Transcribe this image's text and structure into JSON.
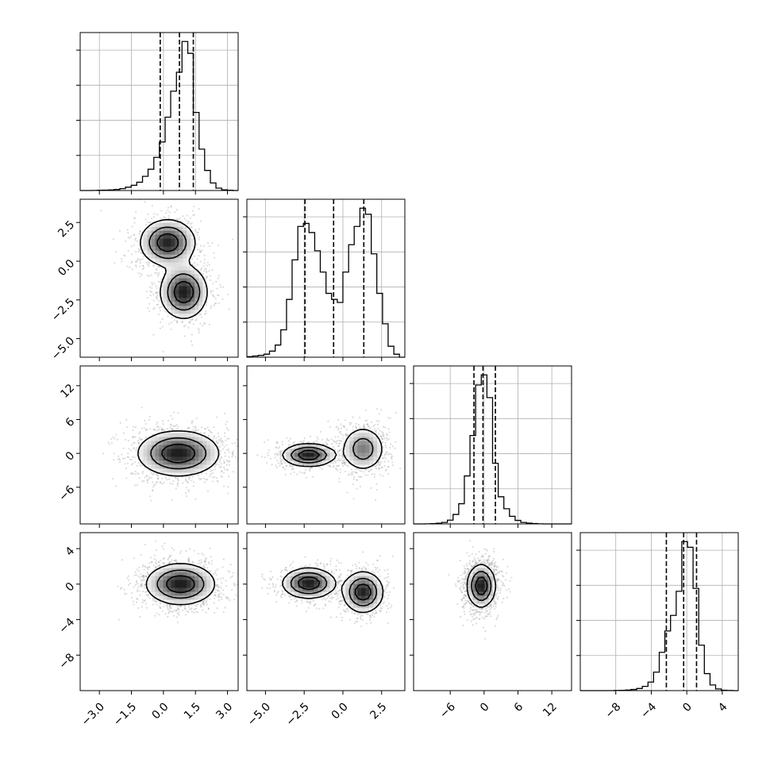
{
  "chart_data": {
    "type": "corner",
    "grid": true,
    "params": [
      {
        "index": 0,
        "range": [
          -3.9,
          3.5
        ],
        "ticks": [
          -3.0,
          -1.5,
          0.0,
          1.5,
          3.0
        ],
        "tick_labels": [
          "−3.0",
          "−1.5",
          "0.0",
          "1.5",
          "3.0"
        ]
      },
      {
        "index": 1,
        "range": [
          -6.2,
          4.0
        ],
        "ticks": [
          -5.0,
          -2.5,
          0.0,
          2.5
        ],
        "tick_labels": [
          "−5.0",
          "−2.5",
          "0.0",
          "2.5"
        ]
      },
      {
        "index": 2,
        "range": [
          -12.5,
          15.5
        ],
        "ticks": [
          -6,
          0,
          6,
          12
        ],
        "tick_labels": [
          "−6",
          "0",
          "6",
          "12"
        ]
      },
      {
        "index": 3,
        "range": [
          -12.0,
          5.8
        ],
        "ticks": [
          -8,
          -4,
          0,
          4
        ],
        "tick_labels": [
          "−8",
          "−4",
          "0",
          "4"
        ]
      }
    ],
    "histograms": [
      {
        "param": 0,
        "quantiles": [
          -0.15,
          0.75,
          1.4
        ],
        "bin_edges": [
          -3.9,
          -3.63,
          -3.37,
          -3.1,
          -2.84,
          -2.57,
          -2.31,
          -2.04,
          -1.78,
          -1.51,
          -1.25,
          -0.98,
          -0.72,
          -0.45,
          -0.19,
          0.08,
          0.34,
          0.61,
          0.87,
          1.14,
          1.4,
          1.67,
          1.93,
          2.2,
          2.46,
          2.73,
          3.0,
          3.26,
          3.5
        ],
        "counts": [
          0,
          0,
          0.5,
          1,
          1.5,
          2.5,
          4.5,
          8,
          14,
          22,
          35,
          60,
          90,
          140,
          205,
          310,
          420,
          500,
          630,
          580,
          330,
          175,
          85,
          32,
          10,
          3,
          1,
          0
        ]
      },
      {
        "param": 1,
        "quantiles": [
          -2.45,
          -0.6,
          1.35
        ],
        "bin_edges": [
          -6.2,
          -5.83,
          -5.47,
          -5.1,
          -4.74,
          -4.37,
          -4.01,
          -3.64,
          -3.28,
          -2.91,
          -2.55,
          -2.19,
          -1.82,
          -1.46,
          -1.09,
          -0.73,
          -0.36,
          0.0,
          0.37,
          0.73,
          1.1,
          1.46,
          1.83,
          2.19,
          2.56,
          2.92,
          3.29,
          3.65,
          4.0
        ],
        "counts": [
          1,
          2,
          3,
          5,
          10,
          20,
          45,
          95,
          160,
          215,
          220,
          205,
          175,
          140,
          105,
          95,
          90,
          140,
          185,
          215,
          245,
          235,
          170,
          105,
          55,
          18,
          5,
          0
        ]
      },
      {
        "param": 2,
        "quantiles": [
          -1.8,
          -0.2,
          2.0
        ],
        "bin_edges": [
          -12.5,
          -11.5,
          -10.5,
          -9.5,
          -8.5,
          -7.5,
          -6.5,
          -5.5,
          -4.5,
          -3.5,
          -2.5,
          -1.5,
          -0.5,
          0.5,
          1.5,
          2.5,
          3.5,
          4.5,
          5.5,
          6.5,
          7.5,
          8.5,
          9.5,
          10.5,
          11.5,
          12.5,
          13.5,
          14.5,
          15.5
        ],
        "counts": [
          0,
          0,
          1,
          2,
          5,
          12,
          30,
          75,
          160,
          380,
          700,
          1100,
          1180,
          1000,
          480,
          215,
          120,
          60,
          28,
          12,
          6,
          3,
          1,
          0,
          0,
          0,
          0,
          0
        ]
      },
      {
        "param": 3,
        "quantiles": [
          -2.3,
          -0.35,
          1.1
        ],
        "bin_edges": [
          -12.0,
          -11.36,
          -10.73,
          -10.09,
          -9.46,
          -8.82,
          -8.19,
          -7.55,
          -6.92,
          -6.28,
          -5.64,
          -5.01,
          -4.37,
          -3.74,
          -3.1,
          -2.47,
          -1.83,
          -1.19,
          -0.56,
          0.08,
          0.71,
          1.35,
          1.98,
          2.62,
          3.25,
          3.89,
          4.52,
          5.16,
          5.8
        ],
        "counts": [
          0,
          0,
          0,
          0,
          0,
          0,
          1,
          2,
          4,
          8,
          15,
          30,
          60,
          130,
          270,
          420,
          530,
          700,
          1050,
          1010,
          720,
          320,
          120,
          40,
          12,
          3,
          1,
          0
        ]
      }
    ],
    "pairs": [
      {
        "x": 0,
        "y": 1,
        "modes": [
          {
            "mean": [
              0.2,
              1.2
            ],
            "sd": [
              0.65,
              0.75
            ],
            "weight": 0.5
          },
          {
            "mean": [
              0.95,
              -2.0
            ],
            "sd": [
              0.55,
              0.85
            ],
            "weight": 0.5
          }
        ]
      },
      {
        "x": 0,
        "y": 2,
        "modes": [
          {
            "mean": [
              0.7,
              0.0
            ],
            "sd": [
              0.95,
              2.0
            ],
            "weight": 1.0
          }
        ]
      },
      {
        "x": 1,
        "y": 2,
        "modes": [
          {
            "mean": [
              -2.2,
              -0.3
            ],
            "sd": [
              0.85,
              1.0
            ],
            "weight": 0.5
          },
          {
            "mean": [
              1.3,
              0.8
            ],
            "sd": [
              0.7,
              2.0
            ],
            "weight": 0.5
          }
        ]
      },
      {
        "x": 0,
        "y": 3,
        "modes": [
          {
            "mean": [
              0.8,
              0.0
            ],
            "sd": [
              0.8,
              1.15
            ],
            "weight": 1.0
          }
        ]
      },
      {
        "x": 1,
        "y": 3,
        "modes": [
          {
            "mean": [
              -2.2,
              0.1
            ],
            "sd": [
              0.85,
              0.85
            ],
            "weight": 0.5
          },
          {
            "mean": [
              1.3,
              -0.9
            ],
            "sd": [
              0.65,
              1.15
            ],
            "weight": 0.5
          }
        ]
      },
      {
        "x": 2,
        "y": 3,
        "modes": [
          {
            "mean": [
              -0.5,
              -0.2
            ],
            "sd": [
              1.25,
              1.2
            ],
            "weight": 1.0
          }
        ]
      }
    ]
  }
}
